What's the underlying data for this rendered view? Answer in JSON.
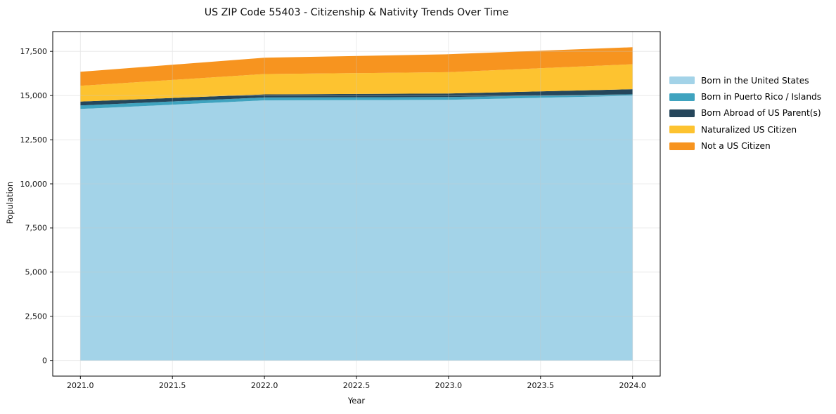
{
  "title": "US ZIP Code 55403 - Citizenship & Nativity Trends Over Time",
  "chart_data": {
    "type": "area",
    "stacked": true,
    "title": "US ZIP Code 55403 - Citizenship & Nativity Trends Over Time",
    "xlabel": "Year",
    "ylabel": "Population",
    "x": [
      2021,
      2022,
      2023,
      2024
    ],
    "series": [
      {
        "name": "Born in the United States",
        "color": "#A3D3E8",
        "values": [
          14240,
          14730,
          14755,
          14990
        ]
      },
      {
        "name": "Born in Puerto Rico / Islands",
        "color": "#3FA3BF",
        "values": [
          200,
          160,
          160,
          80
        ]
      },
      {
        "name": "Born Abroad of US Parent(s)",
        "color": "#25465B",
        "values": [
          220,
          175,
          200,
          290
        ]
      },
      {
        "name": "Naturalized US Citizen",
        "color": "#FDC330",
        "values": [
          890,
          1155,
          1205,
          1410
        ]
      },
      {
        "name": "Not a US Citizen",
        "color": "#F7941F",
        "values": [
          795,
          925,
          1020,
          965
        ]
      }
    ],
    "stack_totals": [
      16345,
      17145,
      17340,
      17735
    ],
    "xticks": [
      2021.0,
      2021.5,
      2022.0,
      2022.5,
      2023.0,
      2023.5,
      2024.0
    ],
    "yticks": [
      0,
      2500,
      5000,
      7500,
      10000,
      12500,
      15000,
      17500
    ],
    "xlim": [
      2020.85,
      2024.15
    ],
    "ylim": [
      -887,
      18622
    ],
    "grid": true,
    "legend_position": "right-outside",
    "frame_color": "#000000",
    "grid_color": "#c8c8c8",
    "background": "#ffffff"
  }
}
